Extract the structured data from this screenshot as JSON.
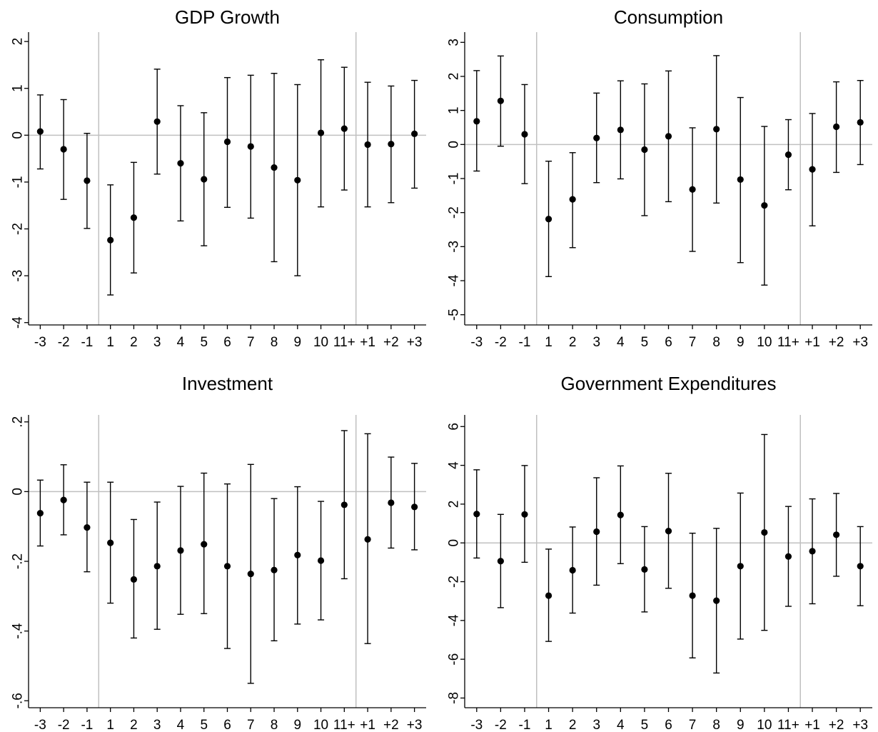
{
  "colors": {
    "axis": "#000000",
    "ref": "#c0c0c0",
    "marker": "#000000"
  },
  "chart_data": [
    {
      "type": "scatter",
      "title": "GDP Growth",
      "categories": [
        "-3",
        "-2",
        "-1",
        "1",
        "2",
        "3",
        "4",
        "5",
        "6",
        "7",
        "8",
        "9",
        "10",
        "11+",
        "+1",
        "+2",
        "+3"
      ],
      "yticks": [
        "2",
        "1",
        "0",
        "-1",
        "-2",
        "-3",
        "-4"
      ],
      "ytick_values": [
        2,
        1,
        0,
        -1,
        -2,
        -3,
        -4
      ],
      "ylim": [
        -4.05,
        2.2
      ],
      "grid": false,
      "ref_line_y": 0,
      "vlines_between": [
        "-1|1",
        "11+|+1"
      ],
      "values": [
        0.08,
        -0.3,
        -0.97,
        -2.24,
        -1.76,
        0.29,
        -0.6,
        -0.94,
        -0.14,
        -0.24,
        -0.69,
        -0.96,
        0.05,
        0.14,
        -0.2,
        -0.19,
        0.03
      ],
      "lower": [
        -0.72,
        -1.37,
        -1.99,
        -3.41,
        -2.94,
        -0.83,
        -1.83,
        -2.36,
        -1.54,
        -1.77,
        -2.7,
        -3.0,
        -1.53,
        -1.17,
        -1.53,
        -1.44,
        -1.13
      ],
      "upper": [
        0.86,
        0.76,
        0.04,
        -1.06,
        -0.58,
        1.41,
        0.63,
        0.48,
        1.23,
        1.28,
        1.32,
        1.08,
        1.61,
        1.45,
        1.13,
        1.05,
        1.17
      ]
    },
    {
      "type": "scatter",
      "title": "Consumption",
      "categories": [
        "-3",
        "-2",
        "-1",
        "1",
        "2",
        "3",
        "4",
        "5",
        "6",
        "7",
        "8",
        "9",
        "10",
        "11+",
        "+1",
        "+2",
        "+3"
      ],
      "yticks": [
        "3",
        "2",
        "1",
        "0",
        "-1",
        "-2",
        "-3",
        "-4",
        "-5"
      ],
      "ytick_values": [
        3,
        2,
        1,
        0,
        -1,
        -2,
        -3,
        -4,
        -5
      ],
      "ylim": [
        -5.3,
        3.3
      ],
      "grid": false,
      "ref_line_y": 0,
      "vlines_between": [
        "-1|1",
        "11+|+1"
      ],
      "values": [
        0.68,
        1.28,
        0.3,
        -2.19,
        -1.61,
        0.19,
        0.43,
        -0.15,
        0.24,
        -1.32,
        0.45,
        -1.03,
        -1.79,
        -0.3,
        -0.73,
        0.52,
        0.65
      ],
      "lower": [
        -0.78,
        -0.05,
        -1.15,
        -3.88,
        -3.03,
        -1.12,
        -1.01,
        -2.09,
        -1.68,
        -3.14,
        -1.72,
        -3.47,
        -4.13,
        -1.33,
        -2.39,
        -0.82,
        -0.59
      ],
      "upper": [
        2.17,
        2.6,
        1.76,
        -0.49,
        -0.24,
        1.51,
        1.87,
        1.78,
        2.16,
        0.49,
        2.61,
        1.38,
        0.53,
        0.73,
        0.91,
        1.84,
        1.88
      ]
    },
    {
      "type": "scatter",
      "title": "Investment",
      "categories": [
        "-3",
        "-2",
        "-1",
        "1",
        "2",
        "3",
        "4",
        "5",
        "6",
        "7",
        "8",
        "9",
        "10",
        "11+",
        "+1",
        "+2",
        "+3"
      ],
      "yticks": [
        ".2",
        "0",
        "-.2",
        "-.4",
        "-.6"
      ],
      "ytick_values": [
        0.2,
        0,
        -0.2,
        -0.4,
        -0.6
      ],
      "ylim": [
        -0.62,
        0.22
      ],
      "grid": false,
      "ref_line_y": 0,
      "vlines_between": [
        "-1|1",
        "11+|+1"
      ],
      "values": [
        -0.062,
        -0.024,
        -0.103,
        -0.147,
        -0.252,
        -0.214,
        -0.169,
        -0.151,
        -0.214,
        -0.236,
        -0.225,
        -0.182,
        -0.198,
        -0.038,
        -0.137,
        -0.032,
        -0.044
      ],
      "lower": [
        -0.156,
        -0.124,
        -0.23,
        -0.32,
        -0.42,
        -0.395,
        -0.352,
        -0.35,
        -0.45,
        -0.55,
        -0.428,
        -0.38,
        -0.368,
        -0.25,
        -0.436,
        -0.162,
        -0.167
      ],
      "upper": [
        0.033,
        0.077,
        0.027,
        0.027,
        -0.08,
        -0.03,
        0.015,
        0.053,
        0.022,
        0.078,
        -0.02,
        0.014,
        -0.028,
        0.175,
        0.166,
        0.099,
        0.081
      ]
    },
    {
      "type": "scatter",
      "title": "Government Expenditures",
      "categories": [
        "-3",
        "-2",
        "-1",
        "1",
        "2",
        "3",
        "4",
        "5",
        "6",
        "7",
        "8",
        "9",
        "10",
        "11+",
        "+1",
        "+2",
        "+3"
      ],
      "yticks": [
        "6",
        "4",
        "2",
        "0",
        "-2",
        "-4",
        "-6",
        "-8"
      ],
      "ytick_values": [
        6,
        4,
        2,
        0,
        -2,
        -4,
        -6,
        -8
      ],
      "ylim": [
        -8.5,
        6.6
      ],
      "grid": false,
      "ref_line_y": 0,
      "vlines_between": [
        "-1|1",
        "11+|+1"
      ],
      "values": [
        1.49,
        -0.94,
        1.47,
        -2.72,
        -1.41,
        0.58,
        1.44,
        -1.37,
        0.61,
        -2.72,
        -2.98,
        -1.2,
        0.54,
        -0.7,
        -0.43,
        0.42,
        -1.2
      ],
      "lower": [
        -0.78,
        -3.34,
        -1.0,
        -5.08,
        -3.62,
        -2.18,
        -1.07,
        -3.56,
        -2.34,
        -5.93,
        -6.71,
        -4.96,
        -4.51,
        -3.27,
        -3.14,
        -1.72,
        -3.24
      ],
      "upper": [
        3.77,
        1.47,
        3.99,
        -0.32,
        0.82,
        3.36,
        3.97,
        0.84,
        3.59,
        0.5,
        0.75,
        2.57,
        5.59,
        1.88,
        2.27,
        2.55,
        0.84
      ]
    }
  ]
}
